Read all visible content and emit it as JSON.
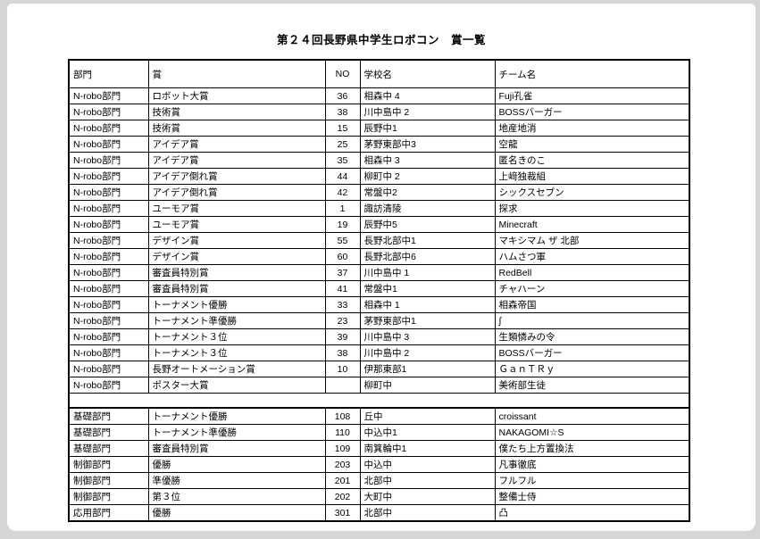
{
  "document": {
    "title": "第２４回長野県中学生ロボコン　賞一覧"
  },
  "colors": {
    "surround_bg": "#d6d6d6",
    "page_bg": "#ffffff",
    "border": "#000000",
    "text": "#000000"
  },
  "table": {
    "headers": [
      "部門",
      "賞",
      "NO",
      "学校名",
      "チーム名"
    ],
    "sections": [
      {
        "name": "n-robo",
        "rows": [
          [
            "N-robo部門",
            "ロボット大賞",
            "36",
            "相森中 4",
            "Fuji孔雀"
          ],
          [
            "N-robo部門",
            "技術賞",
            "38",
            "川中島中 2",
            "BOSSバーガー"
          ],
          [
            "N-robo部門",
            "技術賞",
            "15",
            "辰野中1",
            "地産地消"
          ],
          [
            "N-robo部門",
            "アイデア賞",
            "25",
            "茅野東部中3",
            "空龍"
          ],
          [
            "N-robo部門",
            "アイデア賞",
            "35",
            "相森中 3",
            "匿名きのこ"
          ],
          [
            "N-robo部門",
            "アイデア倒れ賞",
            "44",
            "柳町中 2",
            "上﨑独裁組"
          ],
          [
            "N-robo部門",
            "アイデア倒れ賞",
            "42",
            "常盤中2",
            "シックスセブン"
          ],
          [
            "N-robo部門",
            "ユーモア賞",
            "1",
            "諏訪清陵",
            "探求"
          ],
          [
            "N-robo部門",
            "ユーモア賞",
            "19",
            "辰野中5",
            "Minecraft"
          ],
          [
            "N-robo部門",
            "デザイン賞",
            "55",
            "長野北部中1",
            "マキシマム ザ 北部"
          ],
          [
            "N-robo部門",
            "デザイン賞",
            "60",
            "長野北部中6",
            "ハムさつ軍"
          ],
          [
            "N-robo部門",
            "審査員特別賞",
            "37",
            "川中島中 1",
            "RedBell"
          ],
          [
            "N-robo部門",
            "審査員特別賞",
            "41",
            "常盤中1",
            "チャハーン"
          ],
          [
            "N-robo部門",
            "トーナメント優勝",
            "33",
            "相森中 1",
            "相森帝国"
          ],
          [
            "N-robo部門",
            "トーナメント準優勝",
            "23",
            "茅野東部中1",
            "∫"
          ],
          [
            "N-robo部門",
            "トーナメント３位",
            "39",
            "川中島中 3",
            "生類憐みの令"
          ],
          [
            "N-robo部門",
            "トーナメント３位",
            "38",
            "川中島中 2",
            "BOSSバーガー"
          ],
          [
            "N-robo部門",
            "長野オートメーション賞",
            "10",
            "伊那東部1",
            "ＧａｎＴＲｙ"
          ],
          [
            "N-robo部門",
            "ポスター大賞",
            "",
            "柳町中",
            "美術部生徒"
          ]
        ]
      },
      {
        "name": "lower-sections",
        "rows": [
          [
            "基礎部門",
            "トーナメント優勝",
            "108",
            "丘中",
            "croissant"
          ],
          [
            "基礎部門",
            "トーナメント準優勝",
            "110",
            "中込中1",
            "NAKAGOMI☆S"
          ],
          [
            "基礎部門",
            "審査員特別賞",
            "109",
            "南箕輪中1",
            "僕たち上方置換法"
          ],
          [
            "制御部門",
            "優勝",
            "203",
            "中込中",
            "凡事徹底"
          ],
          [
            "制御部門",
            "準優勝",
            "201",
            "北部中",
            "フルフル"
          ],
          [
            "制御部門",
            "第３位",
            "202",
            "大町中",
            "整備士侍"
          ],
          [
            "応用部門",
            "優勝",
            "301",
            "北部中",
            "凸"
          ]
        ]
      }
    ]
  }
}
